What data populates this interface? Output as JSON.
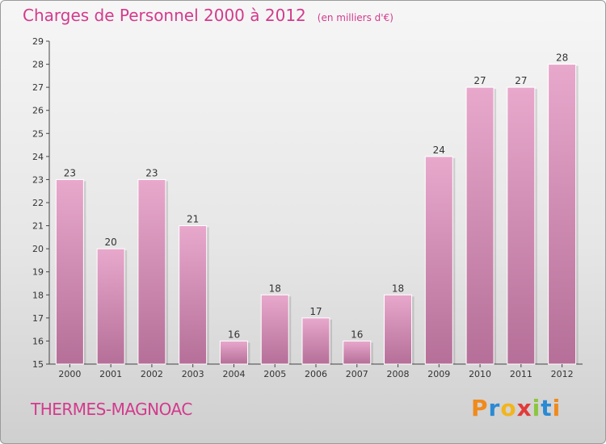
{
  "title": "Charges de Personnel 2000 à 2012",
  "subtitle": "(en milliers d'€)",
  "place": "THERMES-MAGNOAC",
  "logo": {
    "letters": [
      "P",
      "r",
      "o",
      "x",
      "i",
      "t",
      "i"
    ],
    "colors": [
      "#f08a1c",
      "#2a8ad4",
      "#f2b51c",
      "#e23a3a",
      "#8cc63f",
      "#2a8ad4",
      "#f08a1c"
    ]
  },
  "colors": {
    "title": "#d33a8c",
    "bar_top": "#e8a8cc",
    "bar_bottom": "#b56f98",
    "axis": "#444444"
  },
  "chart_data": {
    "type": "bar",
    "title": "Charges de Personnel 2000 à 2012",
    "subtitle": "(en milliers d'€)",
    "categories": [
      "2000",
      "2001",
      "2002",
      "2003",
      "2004",
      "2005",
      "2006",
      "2007",
      "2008",
      "2009",
      "2010",
      "2011",
      "2012"
    ],
    "values": [
      23,
      20,
      23,
      21,
      16,
      18,
      17,
      16,
      18,
      24,
      27,
      27,
      28
    ],
    "value_labels": [
      "23",
      "20",
      "23",
      "21",
      "16",
      "18",
      "17",
      "16",
      "18",
      "24",
      "27",
      "27",
      "28"
    ],
    "ylim": [
      15,
      29
    ],
    "yticks": [
      15,
      16,
      17,
      18,
      19,
      20,
      21,
      22,
      23,
      24,
      25,
      26,
      27,
      28,
      29
    ],
    "grid": false,
    "legend": "none"
  }
}
